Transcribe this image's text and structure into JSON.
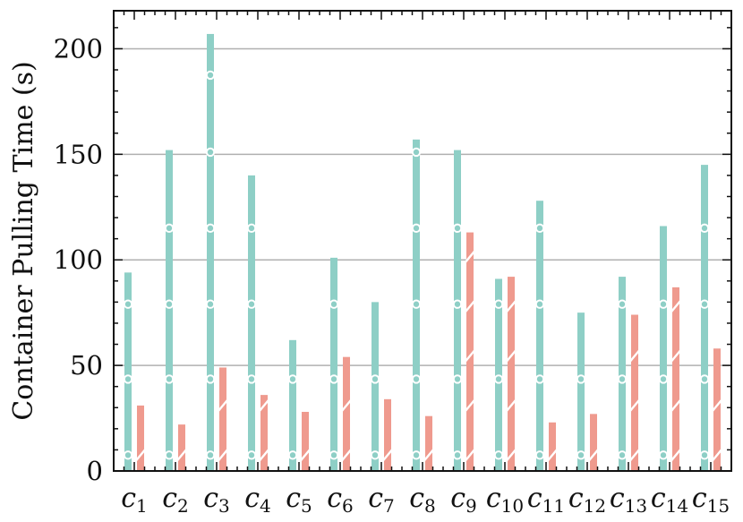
{
  "chart_data": {
    "type": "bar",
    "title": "",
    "xlabel": "",
    "ylabel": "Container Pulling Time (s)",
    "ylim": [
      0,
      218
    ],
    "yticks": [
      0,
      50,
      100,
      150,
      200
    ],
    "grid": "horizontal",
    "legend": "none",
    "categories": [
      {
        "base": "c",
        "sub": "1"
      },
      {
        "base": "c",
        "sub": "2"
      },
      {
        "base": "c",
        "sub": "3"
      },
      {
        "base": "c",
        "sub": "4"
      },
      {
        "base": "c",
        "sub": "5"
      },
      {
        "base": "c",
        "sub": "6"
      },
      {
        "base": "c",
        "sub": "7"
      },
      {
        "base": "c",
        "sub": "8"
      },
      {
        "base": "c",
        "sub": "9"
      },
      {
        "base": "c",
        "sub": "10"
      },
      {
        "base": "c",
        "sub": "11"
      },
      {
        "base": "c",
        "sub": "12"
      },
      {
        "base": "c",
        "sub": "13"
      },
      {
        "base": "c",
        "sub": "14"
      },
      {
        "base": "c",
        "sub": "15"
      }
    ],
    "series": [
      {
        "values": [
          94,
          152,
          207,
          140,
          62,
          101,
          80,
          157,
          152,
          91,
          128,
          75,
          92,
          116,
          145
        ],
        "color": "#8ecfc6",
        "pattern": "circles"
      },
      {
        "values": [
          31,
          22,
          49,
          36,
          28,
          54,
          34,
          26,
          113,
          92,
          23,
          27,
          74,
          87,
          58
        ],
        "color": "#ef9a8e",
        "pattern": "slashes"
      }
    ]
  }
}
